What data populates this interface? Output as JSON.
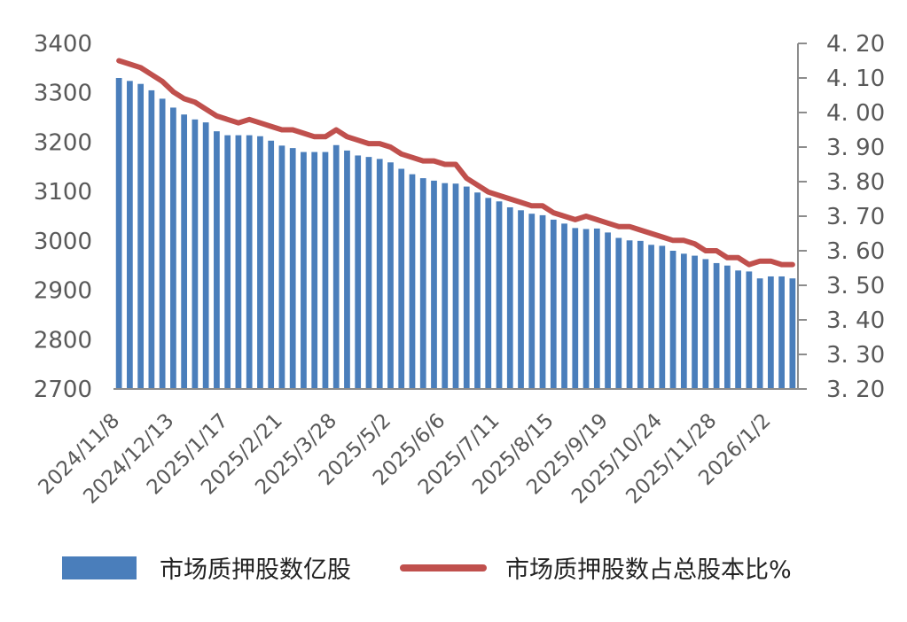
{
  "chart_data": {
    "type": "bar+line",
    "title": "",
    "xlabel": "",
    "x_tick_labels": [
      "2024/11/8",
      "2024/12/13",
      "2025/1/17",
      "2025/2/21",
      "2025/3/28",
      "2025/5/2",
      "2025/6/6",
      "2025/7/11",
      "2025/8/15",
      "2025/9/19",
      "2025/10/24",
      "2025/11/28",
      "2026/1/2"
    ],
    "left_axis": {
      "ylim": [
        2700,
        3400
      ],
      "ticks": [
        "3400",
        "3300",
        "3200",
        "3100",
        "3000",
        "2900",
        "2800",
        "2700"
      ]
    },
    "right_axis": {
      "ylim": [
        3.2,
        4.2
      ],
      "ticks": [
        "4. 20",
        "4. 10",
        "4. 00",
        "3. 90",
        "3. 80",
        "3. 70",
        "3. 60",
        "3. 50",
        "3. 40",
        "3. 30",
        "3. 20"
      ]
    },
    "series": [
      {
        "name": "市场质押股数亿股",
        "type": "bar",
        "axis": "left",
        "color": "#4a7ebb",
        "values": [
          3330,
          3324,
          3318,
          3305,
          3288,
          3270,
          3256,
          3246,
          3240,
          3222,
          3214,
          3214,
          3214,
          3212,
          3203,
          3193,
          3188,
          3180,
          3180,
          3180,
          3194,
          3183,
          3173,
          3170,
          3166,
          3159,
          3146,
          3135,
          3127,
          3122,
          3117,
          3116,
          3110,
          3098,
          3087,
          3080,
          3068,
          3062,
          3055,
          3052,
          3043,
          3035,
          3026,
          3024,
          3025,
          3017,
          3006,
          3001,
          3000,
          2992,
          2990,
          2980,
          2974,
          2970,
          2963,
          2955,
          2950,
          2940,
          2938,
          2924,
          2928,
          2928,
          2924
        ]
      },
      {
        "name": "市场质押股数占总股本比%",
        "type": "line",
        "axis": "right",
        "color": "#c0504d",
        "values": [
          4.15,
          4.14,
          4.13,
          4.11,
          4.09,
          4.06,
          4.04,
          4.03,
          4.01,
          3.99,
          3.98,
          3.97,
          3.98,
          3.97,
          3.96,
          3.95,
          3.95,
          3.94,
          3.93,
          3.93,
          3.95,
          3.93,
          3.92,
          3.91,
          3.91,
          3.9,
          3.88,
          3.87,
          3.86,
          3.86,
          3.85,
          3.85,
          3.81,
          3.79,
          3.77,
          3.76,
          3.75,
          3.74,
          3.73,
          3.73,
          3.71,
          3.7,
          3.69,
          3.7,
          3.69,
          3.68,
          3.67,
          3.67,
          3.66,
          3.65,
          3.64,
          3.63,
          3.63,
          3.62,
          3.6,
          3.6,
          3.58,
          3.58,
          3.56,
          3.57,
          3.57,
          3.56,
          3.56
        ]
      }
    ],
    "legend": {
      "position": "bottom"
    },
    "grid": false
  }
}
